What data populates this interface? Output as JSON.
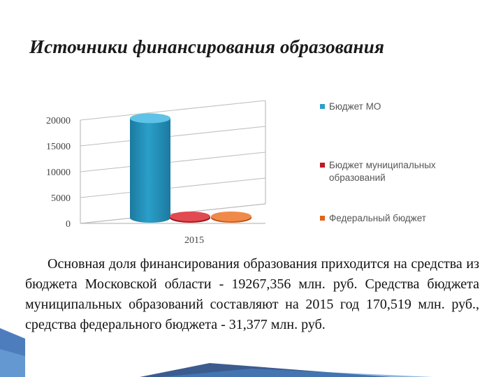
{
  "slide": {
    "title": "Источники финансирования образования",
    "body_text": "Основная доля финансирования образования приходится на средства из бюджета Московской области - 19267,356 млн. руб. Средства бюджета муниципальных образований составляют на 2015 год 170,519 млн. руб., средства федерального бюджета - 31,377 млн. руб."
  },
  "chart_data": {
    "type": "bar",
    "style": "3d-cylinder",
    "categories": [
      "2015"
    ],
    "series": [
      {
        "name": "Бюджет МО",
        "values": [
          19267.356
        ],
        "color": "#2a9fc9"
      },
      {
        "name": "Бюджет муниципальных образований",
        "values": [
          170.519
        ],
        "color": "#c0181f"
      },
      {
        "name": "Федеральный бюджет",
        "values": [
          31.377
        ],
        "color": "#e0641a"
      }
    ],
    "y_ticks": [
      "0",
      "5000",
      "10000",
      "15000",
      "20000"
    ],
    "ylim": [
      0,
      20000
    ],
    "grid": true,
    "legend": "right"
  },
  "colors": {
    "grid": "#bdbdbd",
    "axis_text": "#444444"
  }
}
